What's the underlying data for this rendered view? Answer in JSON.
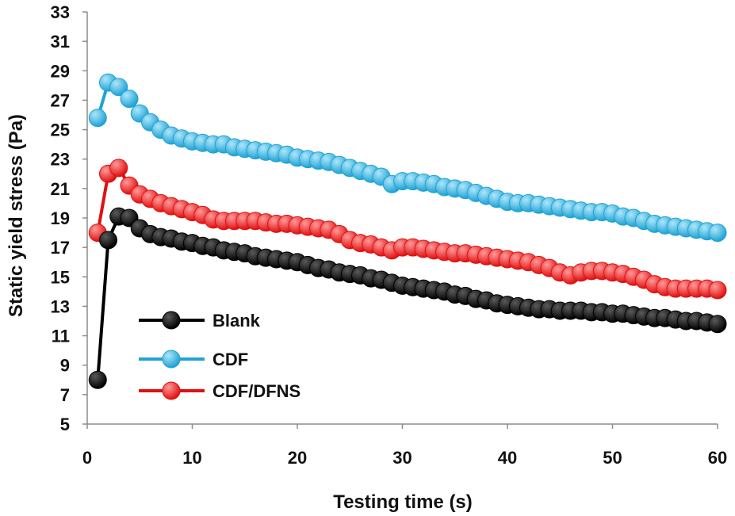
{
  "chart_data": {
    "type": "line",
    "title": "",
    "xlabel": "Testing time (s)",
    "ylabel": "Static yield stress (Pa)",
    "xlim": [
      0,
      60
    ],
    "ylim": [
      5,
      33
    ],
    "xticks": [
      0,
      10,
      20,
      30,
      40,
      50,
      60
    ],
    "yticks": [
      5,
      7,
      9,
      11,
      13,
      15,
      17,
      19,
      21,
      23,
      25,
      27,
      29,
      31,
      33
    ],
    "grid": false,
    "legend_position": "lower-left",
    "x": [
      1,
      2,
      3,
      4,
      5,
      6,
      7,
      8,
      9,
      10,
      11,
      12,
      13,
      14,
      15,
      16,
      17,
      18,
      19,
      20,
      21,
      22,
      23,
      24,
      25,
      26,
      27,
      28,
      29,
      30,
      31,
      32,
      33,
      34,
      35,
      36,
      37,
      38,
      39,
      40,
      41,
      42,
      43,
      44,
      45,
      46,
      47,
      48,
      49,
      50,
      51,
      52,
      53,
      54,
      55,
      56,
      57,
      58,
      59,
      60
    ],
    "series": [
      {
        "name": "Blank",
        "color": "#000000",
        "highlight": "#5a5a5a",
        "values": [
          8.0,
          17.5,
          19.1,
          19.0,
          18.3,
          17.9,
          17.7,
          17.6,
          17.4,
          17.3,
          17.1,
          17.0,
          16.8,
          16.7,
          16.6,
          16.4,
          16.3,
          16.2,
          16.1,
          16.0,
          15.8,
          15.6,
          15.5,
          15.3,
          15.2,
          15.1,
          14.9,
          14.8,
          14.6,
          14.4,
          14.3,
          14.2,
          14.1,
          14.0,
          13.8,
          13.7,
          13.5,
          13.4,
          13.2,
          13.1,
          13.0,
          12.9,
          12.8,
          12.8,
          12.7,
          12.7,
          12.7,
          12.6,
          12.6,
          12.5,
          12.5,
          12.4,
          12.3,
          12.2,
          12.2,
          12.1,
          12.0,
          12.0,
          11.9,
          11.8
        ]
      },
      {
        "name": "CDF",
        "color": "#1fa3d4",
        "highlight": "#aee6fa",
        "values": [
          25.8,
          28.2,
          27.9,
          27.1,
          26.1,
          25.5,
          25.0,
          24.6,
          24.4,
          24.2,
          24.1,
          24.0,
          24.0,
          23.8,
          23.7,
          23.6,
          23.5,
          23.4,
          23.3,
          23.1,
          23.0,
          22.9,
          22.8,
          22.6,
          22.4,
          22.2,
          22.0,
          21.8,
          21.3,
          21.5,
          21.5,
          21.4,
          21.3,
          21.1,
          21.0,
          20.9,
          20.7,
          20.5,
          20.3,
          20.1,
          20.0,
          20.0,
          19.9,
          19.8,
          19.7,
          19.6,
          19.5,
          19.4,
          19.4,
          19.3,
          19.1,
          19.0,
          18.8,
          18.6,
          18.5,
          18.4,
          18.3,
          18.2,
          18.1,
          18.0
        ]
      },
      {
        "name": "CDF/DFNS",
        "color": "#e01010",
        "highlight": "#ff9a9a",
        "values": [
          18.0,
          22.0,
          22.4,
          21.2,
          20.6,
          20.3,
          20.0,
          19.8,
          19.6,
          19.4,
          19.2,
          18.9,
          18.8,
          18.8,
          18.8,
          18.8,
          18.7,
          18.6,
          18.6,
          18.5,
          18.4,
          18.3,
          18.2,
          17.9,
          17.5,
          17.3,
          17.2,
          17.0,
          16.8,
          17.0,
          17.0,
          16.9,
          16.8,
          16.7,
          16.6,
          16.6,
          16.5,
          16.4,
          16.3,
          16.2,
          16.1,
          16.0,
          15.8,
          15.6,
          15.3,
          15.1,
          15.3,
          15.4,
          15.4,
          15.3,
          15.2,
          15.0,
          14.8,
          14.5,
          14.3,
          14.2,
          14.2,
          14.2,
          14.2,
          14.1
        ]
      }
    ]
  }
}
